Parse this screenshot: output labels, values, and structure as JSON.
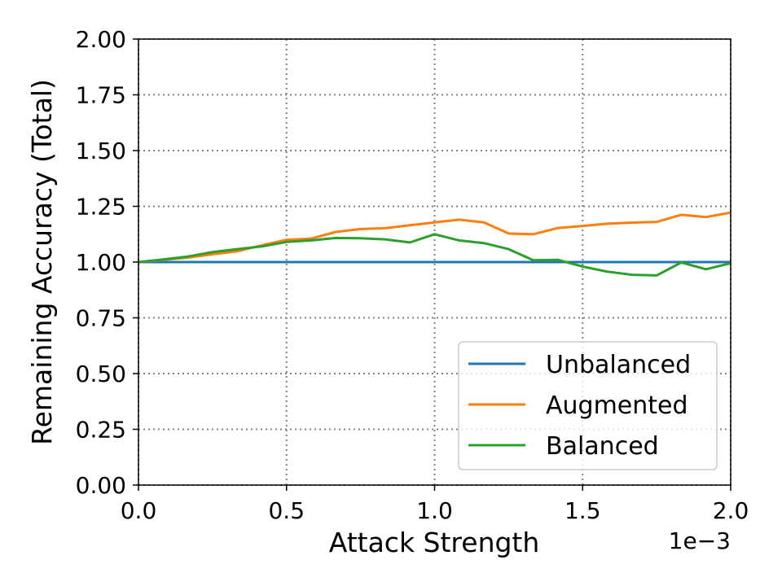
{
  "chart_data": {
    "type": "line",
    "xlabel": "Attack Strength",
    "ylabel": "Remaining Accuracy (Total)",
    "x_offset_label": "1e−3",
    "xlim": [
      0,
      2.0
    ],
    "ylim": [
      0,
      2.0
    ],
    "x_ticks": [
      "0.0",
      "0.5",
      "1.0",
      "1.5",
      "2.0"
    ],
    "y_ticks": [
      "0.00",
      "0.25",
      "0.50",
      "0.75",
      "1.00",
      "1.25",
      "1.50",
      "1.75",
      "2.00"
    ],
    "grid": true,
    "grid_style": "dotted",
    "legend_position": "lower-right",
    "x": [
      0.0,
      0.0833,
      0.1667,
      0.25,
      0.3333,
      0.4167,
      0.5,
      0.5833,
      0.6667,
      0.75,
      0.8333,
      0.9167,
      1.0,
      1.0833,
      1.1667,
      1.25,
      1.3333,
      1.4167,
      1.5,
      1.5833,
      1.6667,
      1.75,
      1.8333,
      1.9167,
      2.0
    ],
    "series": [
      {
        "name": "Unbalanced",
        "color": "#1f77b4",
        "values": [
          1.0,
          1.0,
          1.0,
          1.0,
          1.0,
          1.0,
          1.0,
          1.0,
          1.0,
          1.0,
          1.0,
          1.0,
          1.0,
          1.0,
          1.0,
          1.0,
          1.0,
          1.0,
          1.0,
          1.0,
          1.0,
          1.0,
          1.0,
          1.0,
          1.0
        ]
      },
      {
        "name": "Augmented",
        "color": "#ff7f0e",
        "values": [
          1.0,
          1.01,
          1.02,
          1.035,
          1.048,
          1.075,
          1.1,
          1.105,
          1.135,
          1.148,
          1.152,
          1.165,
          1.178,
          1.19,
          1.178,
          1.128,
          1.125,
          1.153,
          1.162,
          1.172,
          1.177,
          1.18,
          1.212,
          1.202,
          1.222
        ]
      },
      {
        "name": "Balanced",
        "color": "#2ca02c",
        "values": [
          1.0,
          1.012,
          1.025,
          1.045,
          1.058,
          1.07,
          1.09,
          1.097,
          1.108,
          1.107,
          1.102,
          1.088,
          1.125,
          1.097,
          1.085,
          1.058,
          1.008,
          1.01,
          0.98,
          0.957,
          0.943,
          0.94,
          0.998,
          0.968,
          0.995
        ]
      }
    ]
  }
}
